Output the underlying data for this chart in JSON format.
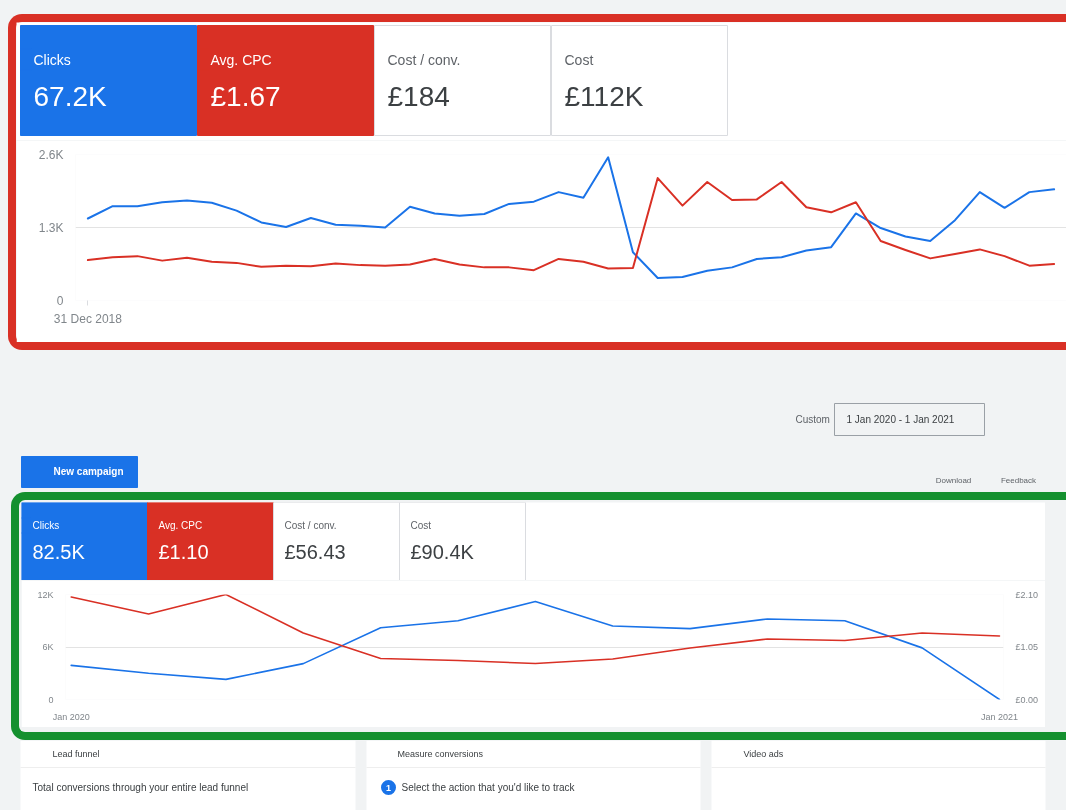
{
  "chart_data": [
    {
      "type": "line",
      "categories": [
        "31 Dec 2018",
        null,
        null,
        null,
        null,
        null,
        null,
        null,
        null,
        null,
        null,
        null,
        null,
        null,
        null,
        null,
        null,
        null,
        null,
        null,
        null,
        null,
        null,
        null,
        null,
        null,
        null,
        null,
        null,
        null,
        null,
        null,
        null,
        null,
        null,
        null,
        null,
        null,
        null,
        null
      ],
      "ylim": [
        0,
        2600
      ],
      "yticks": [
        0,
        {
          "value": 1300,
          "label": "1.3K"
        },
        {
          "value": 2600,
          "label": "2.6K"
        }
      ],
      "grid": "y",
      "legend": "top left",
      "series": [
        {
          "name": "Clicks",
          "color": "#1a73e8",
          "values": [
            1460,
            1680,
            1680,
            1750,
            1780,
            1740,
            1600,
            1390,
            1310,
            1470,
            1350,
            1330,
            1300,
            1670,
            1550,
            1510,
            1540,
            1720,
            1760,
            1930,
            1830,
            2550,
            860,
            400,
            420,
            530,
            590,
            740,
            770,
            890,
            950,
            1550,
            1290,
            1140,
            1060,
            1430,
            1930,
            1650,
            1930,
            1980
          ]
        },
        {
          "name": "Avg. CPC",
          "color": "#d93025",
          "values": [
            720,
            770,
            790,
            710,
            760,
            690,
            670,
            600,
            620,
            610,
            660,
            630,
            620,
            640,
            740,
            640,
            590,
            590,
            540,
            740,
            690,
            570,
            580,
            2180,
            1690,
            2110,
            1790,
            1800,
            2110,
            1660,
            1570,
            1750,
            1060,
            900,
            750,
            830,
            910,
            790,
            620,
            650
          ]
        }
      ],
      "annotations": [
        "67.2K",
        "£1.67",
        "Cost / conv.",
        "£184",
        "Cost",
        "£112K"
      ]
    },
    {
      "type": "other",
      "annotations": [
        "Custom",
        "1 Jan 2020 - 1 Jan 2021",
        "New campaign",
        "Download",
        "Feedback"
      ]
    },
    {
      "type": "line",
      "categories": [
        "Jan 2020",
        null,
        null,
        null,
        null,
        null,
        null,
        null,
        null,
        null,
        null,
        null,
        "Jan 2021"
      ],
      "ylim": [
        0,
        12000
      ],
      "yticks": [
        0,
        {
          "value": 6000,
          "label": "6K"
        },
        {
          "value": 12000,
          "label": "12K"
        }
      ],
      "y2lim": [
        0,
        2.1
      ],
      "y2ticks": [
        {
          "value": 0,
          "label": "£0.00"
        },
        {
          "value": 1.05,
          "label": "£1.05"
        },
        {
          "value": 2.1,
          "label": "£2.10"
        }
      ],
      "grid": "y",
      "legend": "top left",
      "series": [
        {
          "name": "Clicks",
          "color": "#1a73e8",
          "values": [
            3900,
            3000,
            2300,
            4100,
            8200,
            9000,
            11200,
            8400,
            8100,
            9200,
            9000,
            5900,
            0
          ]
        },
        {
          "name": "Avg. CPC",
          "color": "#d93025",
          "axis": "y2",
          "values": [
            2.05,
            1.71,
            2.1,
            1.33,
            0.82,
            0.78,
            0.72,
            0.81,
            1.03,
            1.21,
            1.18,
            1.33,
            1.27
          ]
        }
      ],
      "annotations": [
        "82.5K",
        "£1.10",
        "Cost / conv.",
        "£56.43",
        "Cost",
        "£90.4K"
      ]
    },
    {
      "type": "other",
      "annotations": [
        "Lead funnel",
        "Total conversions through your entire lead funnel",
        "Measure conversions",
        "1",
        "Select the action that you'd like to track",
        "Video ads"
      ]
    }
  ]
}
